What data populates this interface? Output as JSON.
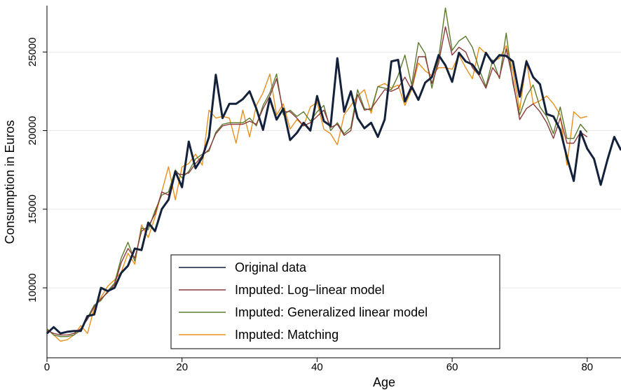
{
  "chart_data": {
    "type": "line",
    "x_label": "Age",
    "y_label": "Consumption in Euros",
    "x": [
      0,
      1,
      2,
      3,
      4,
      5,
      6,
      7,
      8,
      9,
      10,
      11,
      12,
      13,
      14,
      15,
      16,
      17,
      18,
      19,
      20,
      21,
      22,
      23,
      24,
      25,
      26,
      27,
      28,
      29,
      30,
      31,
      32,
      33,
      34,
      35,
      36,
      37,
      38,
      39,
      40,
      41,
      42,
      43,
      44,
      45,
      46,
      47,
      48,
      49,
      50,
      51,
      52,
      53,
      54,
      55,
      56,
      57,
      58,
      59,
      60,
      61,
      62,
      63,
      64,
      65,
      66,
      67,
      68,
      69,
      70,
      71,
      72,
      73,
      74,
      75,
      76,
      77,
      78,
      79,
      80,
      81,
      82,
      83,
      84,
      85
    ],
    "xlim": [
      0,
      85
    ],
    "xticks": [
      0,
      20,
      40,
      60,
      80
    ],
    "ylim": [
      5550,
      27950
    ],
    "yticks": [
      10000,
      15000,
      20000,
      25000
    ],
    "grid": true,
    "legend_position": "bottom",
    "series": [
      {
        "name": "Original data",
        "color": "#14213a",
        "values": [
          7100,
          7500,
          7100,
          7200,
          7250,
          7250,
          8200,
          8300,
          10000,
          9800,
          10000,
          10950,
          11400,
          12500,
          12400,
          14150,
          13600,
          15000,
          15600,
          17400,
          16400,
          19300,
          17600,
          18300,
          19600,
          23550,
          20800,
          21700,
          21700,
          22000,
          22500,
          21400,
          20050,
          22050,
          20700,
          21400,
          19400,
          19850,
          20500,
          20000,
          22200,
          20600,
          20300,
          24600,
          21200,
          22500,
          20800,
          20150,
          20500,
          19600,
          20700,
          24400,
          24500,
          21850,
          22800,
          21950,
          23050,
          23400,
          24800,
          24150,
          23100,
          24950,
          24400,
          24200,
          23600,
          24950,
          24300,
          24800,
          24750,
          24400,
          22150,
          24400,
          23400,
          22950,
          21050,
          20900,
          20050,
          18300,
          16800,
          19950,
          18850,
          18200,
          16550,
          18150,
          19600,
          18750
        ]
      },
      {
        "name": "Imputed: Log−linear model",
        "color": "#8b3a3a",
        "values": [
          7300,
          7100,
          7000,
          7000,
          7100,
          7400,
          8000,
          8800,
          9300,
          9700,
          10200,
          11600,
          12500,
          11900,
          13600,
          13900,
          14700,
          16100,
          15900,
          17300,
          17200,
          17300,
          17900,
          18400,
          18800,
          19800,
          20300,
          20400,
          20400,
          20400,
          20600,
          20400,
          21400,
          22200,
          23300,
          21200,
          21200,
          20800,
          20300,
          20500,
          20900,
          21300,
          20200,
          20400,
          19700,
          20000,
          22300,
          21300,
          21400,
          22000,
          22600,
          22500,
          22700,
          23400,
          22600,
          24700,
          24700,
          23000,
          24300,
          26600,
          24800,
          25300,
          25000,
          24000,
          23500,
          22700,
          24000,
          23400,
          25200,
          23200,
          20700,
          21400,
          21700,
          21200,
          20500,
          19500,
          20800,
          19200,
          19200,
          19900,
          19600,
          null,
          null,
          null,
          null,
          null
        ]
      },
      {
        "name": "Imputed: Generalized linear model",
        "color": "#5b7a2e",
        "values": [
          7400,
          7000,
          6900,
          6900,
          7000,
          7300,
          8100,
          8900,
          9200,
          9800,
          10300,
          11900,
          12900,
          11700,
          13800,
          13700,
          14900,
          15900,
          16100,
          17500,
          17000,
          17400,
          18200,
          18500,
          18700,
          19900,
          20400,
          20500,
          20500,
          20500,
          20800,
          20300,
          21600,
          22400,
          23600,
          21000,
          21300,
          20900,
          21200,
          20600,
          21200,
          21600,
          20000,
          20500,
          19800,
          20200,
          22600,
          21400,
          21300,
          22800,
          22700,
          22600,
          23500,
          24800,
          22900,
          25600,
          24900,
          22700,
          24600,
          27800,
          25100,
          25700,
          26000,
          25300,
          23900,
          22800,
          24500,
          23300,
          26200,
          23000,
          21000,
          22200,
          22900,
          21500,
          20900,
          19800,
          21500,
          19500,
          19500,
          20400,
          19900,
          null,
          null,
          null,
          null,
          null
        ]
      },
      {
        "name": "Imputed: Matching",
        "color": "#e8901c",
        "values": [
          7400,
          7000,
          6600,
          6700,
          7000,
          7600,
          7100,
          8700,
          9400,
          10100,
          10500,
          11000,
          12200,
          11500,
          14000,
          13200,
          14500,
          16100,
          17700,
          15600,
          17700,
          17900,
          18500,
          17800,
          21300,
          20800,
          20900,
          20800,
          19200,
          21300,
          19600,
          21600,
          22400,
          23600,
          21000,
          21700,
          20100,
          20700,
          20300,
          21500,
          21800,
          20100,
          19800,
          19100,
          21000,
          21600,
          22200,
          22600,
          21100,
          22800,
          23000,
          22700,
          22900,
          21600,
          22600,
          24300,
          23800,
          23500,
          24000,
          24000,
          23900,
          24800,
          24000,
          23300,
          25300,
          24900,
          24400,
          24600,
          25400,
          23800,
          21300,
          24500,
          21700,
          21900,
          22200,
          21700,
          21000,
          17800,
          21200,
          20800,
          20900,
          null,
          null,
          null,
          null,
          null
        ]
      }
    ]
  }
}
